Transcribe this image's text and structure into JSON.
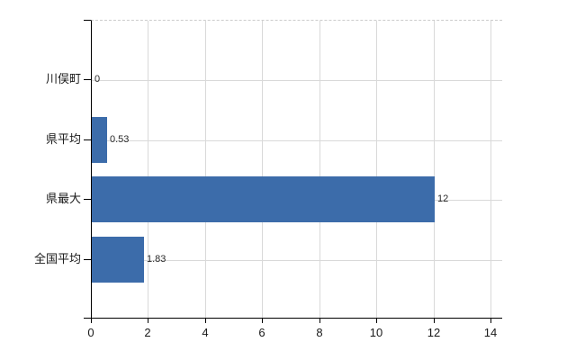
{
  "chart_data": {
    "type": "bar",
    "orientation": "horizontal",
    "title": "",
    "xlabel": "",
    "ylabel": "",
    "categories": [
      "川俣町",
      "県平均",
      "県最大",
      "全国平均"
    ],
    "values": [
      0,
      0.53,
      12,
      1.83
    ],
    "value_labels": [
      "0",
      "0.53",
      "12",
      "1.83"
    ],
    "xlim": [
      0,
      14
    ],
    "xticks": [
      0,
      2,
      4,
      6,
      8,
      10,
      12,
      14
    ],
    "xtick_labels": [
      "0",
      "2",
      "4",
      "6",
      "8",
      "10",
      "12",
      "14"
    ],
    "grid": true,
    "legend": false,
    "bar_color": "#3c6caa",
    "grid_color": "#d9d9d9",
    "axis_color": "#000000",
    "tick_label_color": "#1a1a1a",
    "category_label_color": "#1a1a1a",
    "value_label_color": "#2a2a2a",
    "background_color": "#ffffff"
  }
}
